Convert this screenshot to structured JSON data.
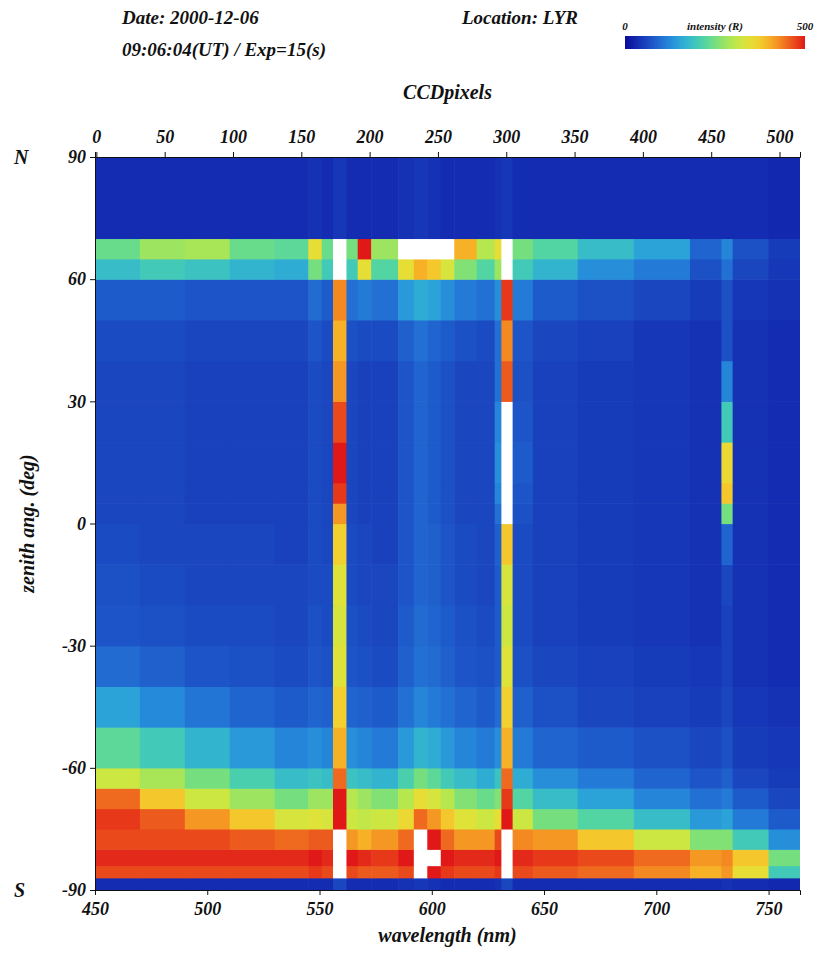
{
  "chart_data": {
    "type": "heatmap",
    "title": "Date: 2000-12-06",
    "subtitle": "09:06:04(UT) / Exp=15(s)",
    "annotations": [
      {
        "text": "Location: LYR"
      },
      {
        "text": "N",
        "y": 90
      },
      {
        "text": "S",
        "y": -90
      }
    ],
    "x_label": "wavelength (nm)",
    "x2_label": "CCDpixels",
    "y_label": "zenith ang. (deg)",
    "xlim": [
      450,
      764
    ],
    "xticks": [
      450,
      500,
      550,
      600,
      650,
      700,
      750
    ],
    "x2lim": [
      -1,
      515
    ],
    "x2ticks": [
      0,
      50,
      100,
      150,
      200,
      250,
      300,
      350,
      400,
      450,
      500
    ],
    "ylim": [
      -90,
      90
    ],
    "yticks": [
      -90,
      -60,
      -30,
      0,
      30,
      60,
      90
    ],
    "x_edges": [
      450,
      470,
      490,
      510,
      530,
      545,
      551,
      556,
      562,
      567,
      573,
      585,
      592,
      598,
      604,
      610,
      620,
      628,
      631,
      636,
      645,
      665,
      690,
      715,
      729,
      734,
      750,
      764
    ],
    "y_edges": [
      -90,
      -87,
      -84,
      -80,
      -75,
      -70,
      -65,
      -60,
      -50,
      -40,
      -30,
      -20,
      -10,
      0,
      5,
      10,
      20,
      30,
      40,
      50,
      60,
      65,
      70,
      90
    ],
    "cells": [
      [
        35,
        35,
        35,
        35,
        35,
        35,
        35,
        60,
        35,
        35,
        35,
        40,
        45,
        40,
        35,
        35,
        35,
        40,
        60,
        35,
        35,
        35,
        35,
        35,
        40,
        35,
        30
      ],
      [
        470,
        470,
        470,
        470,
        470,
        480,
        470,
        560,
        470,
        460,
        460,
        470,
        520,
        500,
        480,
        470,
        470,
        480,
        560,
        470,
        460,
        450,
        430,
        400,
        420,
        350,
        200
      ],
      [
        490,
        490,
        490,
        490,
        490,
        500,
        490,
        600,
        500,
        490,
        480,
        500,
        560,
        540,
        500,
        490,
        490,
        500,
        600,
        490,
        480,
        470,
        450,
        420,
        430,
        380,
        250
      ],
      [
        470,
        470,
        470,
        460,
        450,
        460,
        460,
        550,
        420,
        400,
        420,
        450,
        550,
        500,
        450,
        420,
        420,
        470,
        560,
        430,
        420,
        380,
        320,
        260,
        260,
        200,
        130
      ],
      [
        480,
        460,
        420,
        380,
        330,
        340,
        330,
        500,
        320,
        310,
        320,
        360,
        450,
        420,
        380,
        340,
        320,
        350,
        500,
        320,
        250,
        220,
        180,
        140,
        150,
        110,
        80
      ],
      [
        450,
        380,
        320,
        280,
        250,
        280,
        280,
        500,
        300,
        280,
        260,
        300,
        350,
        330,
        300,
        260,
        240,
        260,
        480,
        220,
        180,
        150,
        120,
        100,
        110,
        80,
        60
      ],
      [
        320,
        290,
        250,
        210,
        180,
        190,
        180,
        450,
        190,
        180,
        170,
        210,
        250,
        230,
        200,
        180,
        160,
        190,
        450,
        160,
        130,
        110,
        90,
        75,
        85,
        60,
        50
      ],
      [
        230,
        200,
        170,
        140,
        120,
        130,
        120,
        400,
        130,
        120,
        110,
        140,
        170,
        160,
        140,
        120,
        110,
        130,
        400,
        110,
        90,
        80,
        70,
        60,
        70,
        50,
        45
      ],
      [
        150,
        125,
        105,
        90,
        80,
        90,
        85,
        370,
        90,
        85,
        80,
        100,
        120,
        110,
        100,
        90,
        80,
        95,
        370,
        85,
        70,
        60,
        55,
        50,
        60,
        45,
        40
      ],
      [
        95,
        85,
        75,
        70,
        65,
        75,
        70,
        340,
        75,
        70,
        65,
        85,
        100,
        95,
        85,
        75,
        70,
        80,
        340,
        70,
        60,
        55,
        50,
        45,
        55,
        40,
        35
      ],
      [
        75,
        70,
        65,
        65,
        60,
        70,
        65,
        330,
        70,
        65,
        60,
        80,
        95,
        90,
        80,
        70,
        65,
        80,
        320,
        65,
        55,
        50,
        45,
        40,
        55,
        40,
        35
      ],
      [
        70,
        65,
        60,
        60,
        60,
        65,
        65,
        340,
        65,
        60,
        60,
        75,
        90,
        85,
        75,
        65,
        60,
        80,
        330,
        65,
        55,
        50,
        45,
        40,
        60,
        40,
        35
      ],
      [
        65,
        60,
        60,
        60,
        55,
        65,
        60,
        370,
        65,
        60,
        55,
        75,
        90,
        85,
        75,
        65,
        60,
        85,
        380,
        65,
        55,
        50,
        45,
        40,
        90,
        40,
        35
      ],
      [
        60,
        60,
        55,
        55,
        55,
        65,
        60,
        420,
        60,
        55,
        55,
        75,
        90,
        80,
        70,
        60,
        60,
        100,
        520,
        70,
        55,
        50,
        45,
        40,
        250,
        40,
        35
      ],
      [
        60,
        60,
        55,
        55,
        55,
        65,
        60,
        480,
        60,
        55,
        55,
        75,
        90,
        80,
        70,
        60,
        60,
        120,
        640,
        75,
        55,
        50,
        45,
        40,
        380,
        40,
        35
      ],
      [
        60,
        60,
        55,
        55,
        55,
        65,
        60,
        500,
        60,
        55,
        55,
        75,
        90,
        80,
        70,
        60,
        60,
        130,
        680,
        80,
        55,
        50,
        45,
        40,
        360,
        40,
        35
      ],
      [
        60,
        60,
        55,
        55,
        55,
        65,
        60,
        470,
        60,
        55,
        55,
        75,
        90,
        80,
        70,
        60,
        60,
        120,
        560,
        75,
        55,
        50,
        45,
        40,
        200,
        40,
        35
      ],
      [
        60,
        60,
        55,
        55,
        55,
        65,
        60,
        420,
        60,
        55,
        55,
        75,
        90,
        80,
        70,
        60,
        60,
        100,
        460,
        70,
        55,
        50,
        45,
        40,
        120,
        40,
        35
      ],
      [
        65,
        65,
        60,
        60,
        60,
        75,
        65,
        400,
        70,
        65,
        65,
        85,
        100,
        90,
        80,
        70,
        65,
        100,
        430,
        75,
        60,
        55,
        45,
        40,
        70,
        40,
        35
      ],
      [
        80,
        80,
        75,
        75,
        75,
        95,
        80,
        430,
        100,
        110,
        100,
        140,
        160,
        150,
        130,
        110,
        100,
        130,
        480,
        110,
        80,
        70,
        60,
        50,
        70,
        45,
        40
      ],
      [
        180,
        200,
        190,
        170,
        160,
        250,
        200,
        550,
        200,
        350,
        220,
        350,
        400,
        380,
        330,
        260,
        220,
        280,
        600,
        200,
        170,
        130,
        110,
        70,
        100,
        60,
        45
      ],
      [
        240,
        280,
        290,
        240,
        230,
        350,
        240,
        620,
        250,
        500,
        280,
        600,
        700,
        700,
        650,
        400,
        300,
        350,
        650,
        250,
        220,
        180,
        150,
        90,
        120,
        70,
        50
      ],
      [
        35,
        35,
        35,
        35,
        35,
        40,
        35,
        45,
        35,
        35,
        35,
        40,
        45,
        40,
        35,
        35,
        35,
        40,
        45,
        35,
        35,
        35,
        35,
        35,
        35,
        35,
        30
      ]
    ],
    "colorbar": {
      "label": "intensity (R)",
      "range": [
        0,
        500
      ],
      "ticks": [
        0,
        500
      ]
    }
  }
}
